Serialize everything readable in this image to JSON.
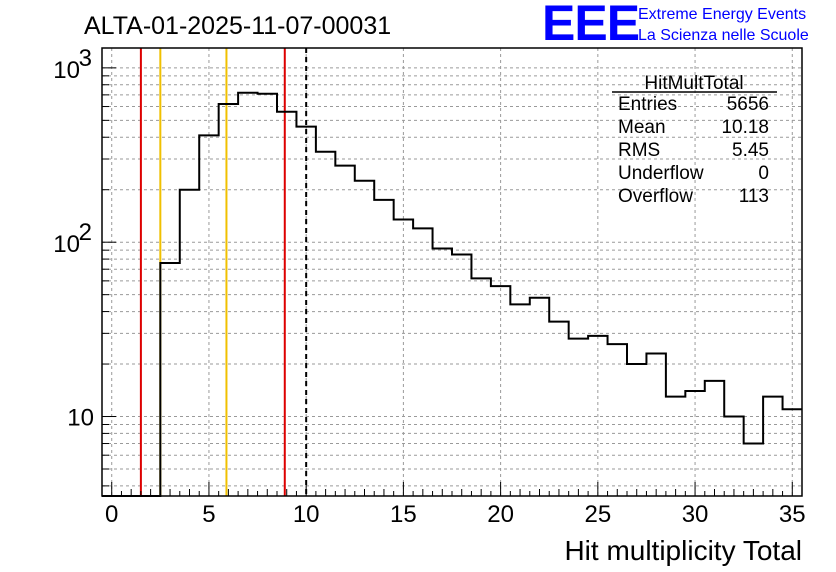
{
  "page": {
    "title": "ALTA-01-2025-11-07-00031",
    "logo": {
      "mark": "EEE",
      "line1": "Extreme Energy Events",
      "line2": "La Scienza nelle Scuole"
    }
  },
  "chart_data": {
    "type": "histogram",
    "title": "ALTA-01-2025-11-07-00031",
    "xlabel": "Hit multiplicity Total",
    "ylabel": "",
    "xlim": [
      -0.5,
      35.5
    ],
    "ylim": [
      3.5,
      1300
    ],
    "yscale": "log",
    "grid": true,
    "bin_width": 1,
    "x_ticks": [
      0,
      5,
      10,
      15,
      20,
      25,
      30,
      35
    ],
    "x_tick_labels": [
      "0",
      "5",
      "10",
      "15",
      "20",
      "25",
      "30",
      "35"
    ],
    "y_ticks": [
      10,
      100,
      1000
    ],
    "y_tick_labels": [
      {
        "base": "10",
        "exp": ""
      },
      {
        "base": "10",
        "exp": "2"
      },
      {
        "base": "10",
        "exp": "3"
      }
    ],
    "bins": {
      "centers": [
        0,
        1,
        2,
        3,
        4,
        5,
        6,
        7,
        8,
        9,
        10,
        11,
        12,
        13,
        14,
        15,
        16,
        17,
        18,
        19,
        20,
        21,
        22,
        23,
        24,
        25,
        26,
        27,
        28,
        29,
        30,
        31,
        32,
        33,
        34,
        35
      ],
      "counts": [
        0,
        0,
        0,
        76,
        200,
        410,
        620,
        720,
        710,
        560,
        460,
        330,
        275,
        225,
        175,
        135,
        120,
        92,
        85,
        62,
        56,
        44,
        48,
        35,
        28,
        29,
        26,
        20,
        23,
        13,
        14,
        16,
        10,
        7,
        13,
        11
      ]
    },
    "vertical_lines": [
      {
        "x": 1.5,
        "color": "#dd0000",
        "style": "solid"
      },
      {
        "x": 2.5,
        "color": "#f0c000",
        "style": "solid"
      },
      {
        "x": 5.9,
        "color": "#f0c000",
        "style": "solid"
      },
      {
        "x": 8.9,
        "color": "#dd0000",
        "style": "solid"
      },
      {
        "x": 10.0,
        "color": "#000000",
        "style": "dashed"
      }
    ],
    "stats_box": {
      "name": "HitMultTotal",
      "rows": [
        {
          "label": "Entries",
          "value": "5656"
        },
        {
          "label": "Mean",
          "value": "10.18"
        },
        {
          "label": "RMS",
          "value": "5.45"
        },
        {
          "label": "Underflow",
          "value": "0"
        },
        {
          "label": "Overflow",
          "value": "113"
        }
      ],
      "placement": "top-right"
    },
    "colors": {
      "histogram": "#000000",
      "grid": "#9a9a9a",
      "logo": "#0000ff"
    }
  }
}
